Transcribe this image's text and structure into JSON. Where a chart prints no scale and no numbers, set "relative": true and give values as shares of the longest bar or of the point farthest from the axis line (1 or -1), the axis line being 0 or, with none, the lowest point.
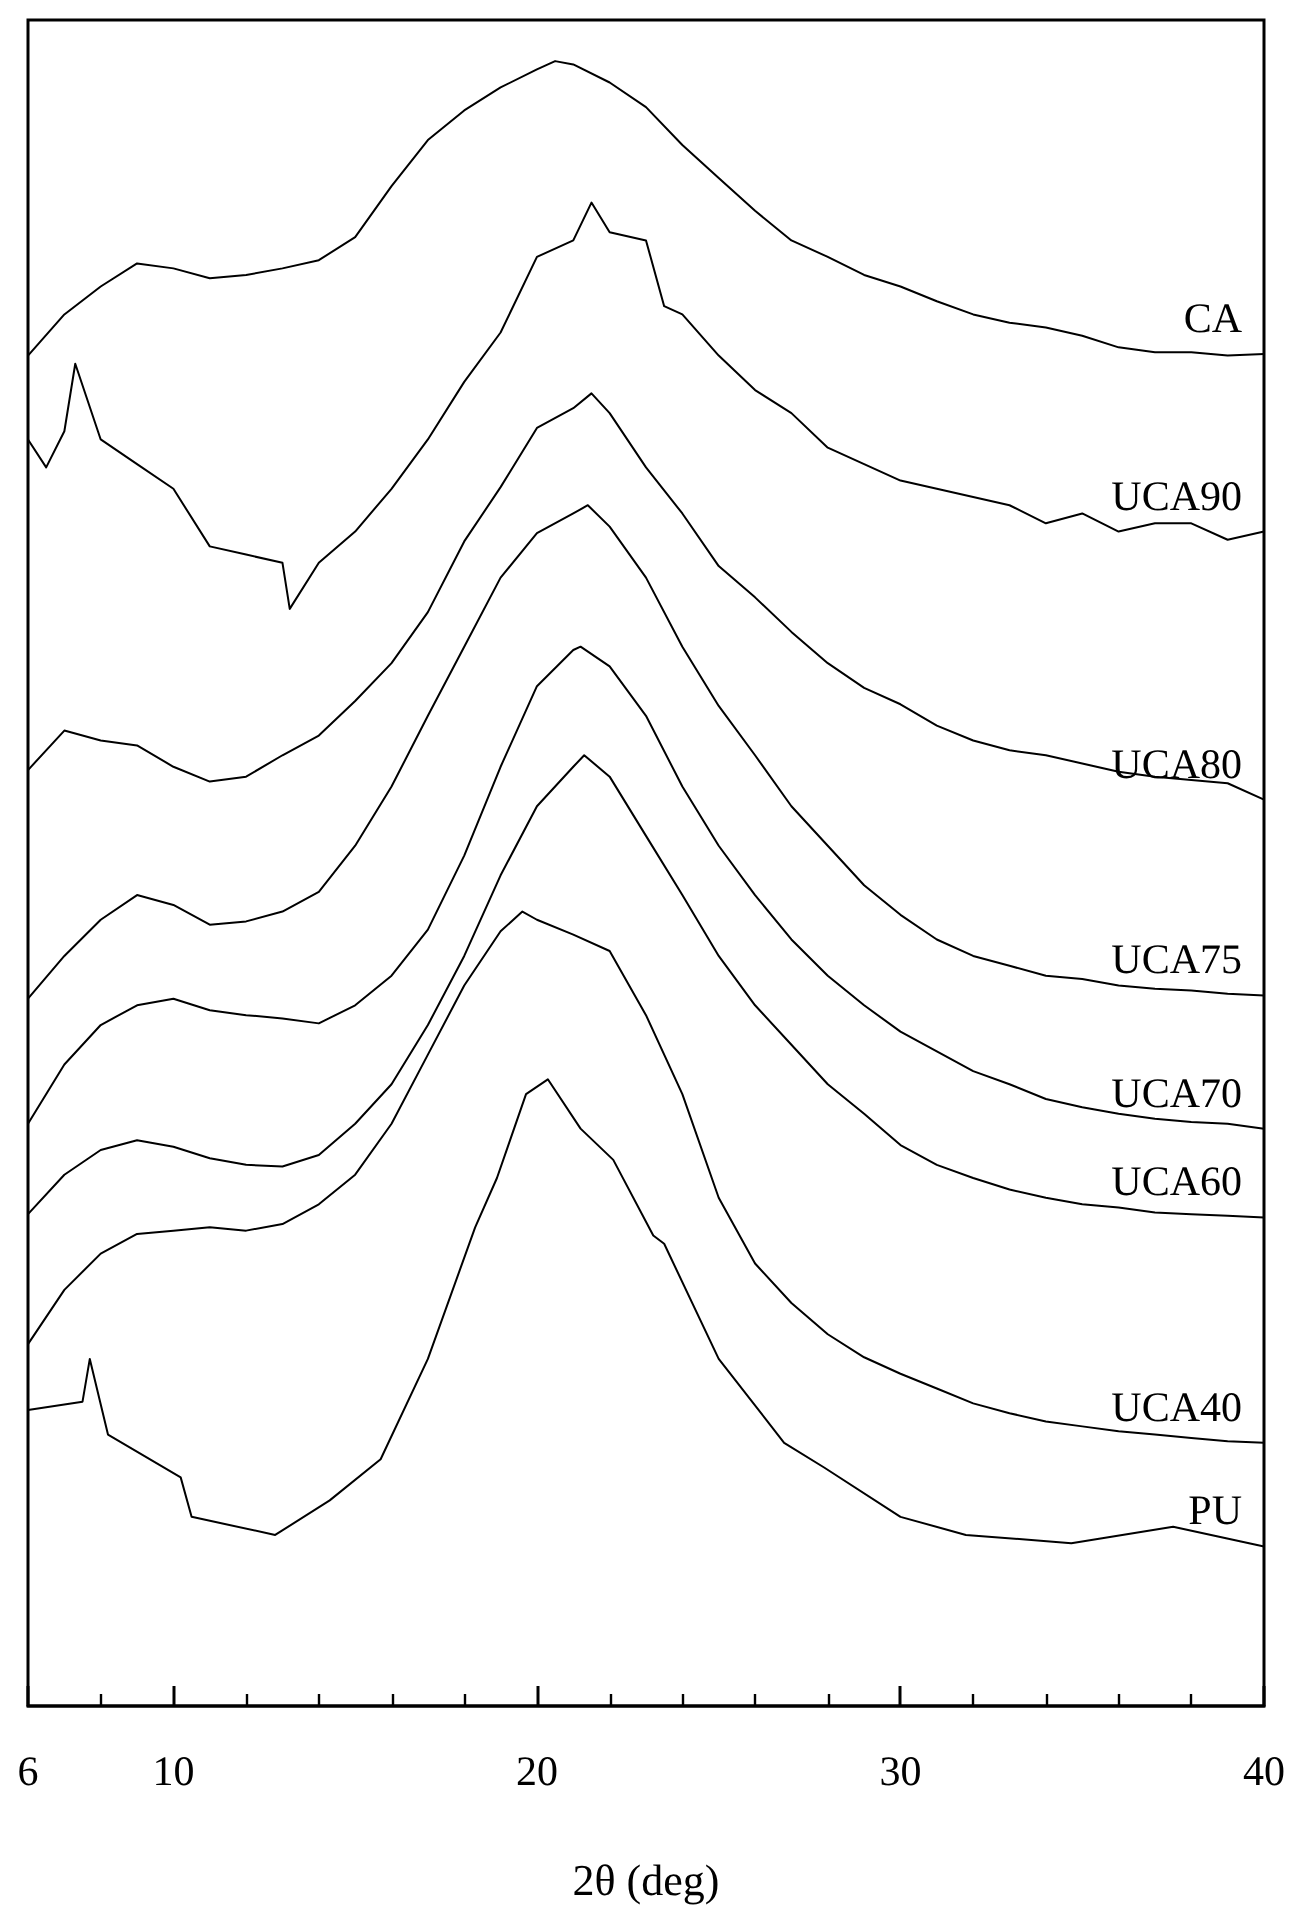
{
  "chart_data": {
    "type": "line",
    "xlabel": "2θ (deg)",
    "relative": true,
    "xlim": [
      6,
      40
    ],
    "xticks": [
      6,
      {
        "value": 8,
        "label": null
      },
      10,
      {
        "value": 12,
        "label": null
      },
      {
        "value": 14,
        "label": null
      },
      {
        "value": 16,
        "label": null
      },
      {
        "value": 18,
        "label": null
      },
      20,
      {
        "value": 22,
        "label": null
      },
      {
        "value": 24,
        "label": null
      },
      {
        "value": 26,
        "label": null
      },
      {
        "value": 28,
        "label": null
      },
      30,
      {
        "value": 32,
        "label": null
      },
      {
        "value": 34,
        "label": null
      },
      {
        "value": 36,
        "label": null
      },
      {
        "value": 38,
        "label": null
      },
      40
    ],
    "marker": "none",
    "line_style": "solid",
    "series": [
      {
        "name": "CA",
        "color": "#000000",
        "x": [
          6,
          7,
          8,
          9,
          10,
          11,
          12,
          13,
          14,
          15,
          16,
          17,
          18,
          19,
          20,
          20.5,
          21,
          22,
          23,
          24,
          25,
          26,
          27,
          28,
          29,
          30,
          31,
          32,
          33,
          34,
          35,
          36,
          37,
          38,
          39,
          40
        ],
        "values": [
          0.821,
          0.846,
          0.863,
          0.877,
          0.874,
          0.868,
          0.87,
          0.874,
          0.879,
          0.893,
          0.924,
          0.952,
          0.97,
          0.984,
          0.995,
          1,
          0.998,
          0.987,
          0.972,
          0.949,
          0.929,
          0.909,
          0.891,
          0.881,
          0.87,
          0.863,
          0.854,
          0.846,
          0.841,
          0.838,
          0.833,
          0.826,
          0.823,
          0.823,
          0.821,
          0.822
        ]
      },
      {
        "name": "UCA90",
        "color": "#000000",
        "x": [
          6,
          6.5,
          7,
          7.3,
          8,
          9,
          10,
          11,
          12,
          13,
          13.2,
          14,
          15,
          16,
          17,
          18,
          19,
          20,
          21,
          21.5,
          22,
          23,
          23.5,
          24,
          25,
          26,
          27,
          28,
          29,
          30,
          31,
          32,
          33,
          34,
          35,
          36,
          37,
          38,
          39,
          40
        ],
        "values": [
          0.77,
          0.753,
          0.775,
          0.816,
          0.77,
          0.755,
          0.74,
          0.705,
          0.7,
          0.695,
          0.667,
          0.695,
          0.714,
          0.74,
          0.77,
          0.805,
          0.835,
          0.881,
          0.891,
          0.914,
          0.896,
          0.891,
          0.851,
          0.846,
          0.821,
          0.8,
          0.786,
          0.765,
          0.755,
          0.745,
          0.74,
          0.735,
          0.73,
          0.719,
          0.725,
          0.714,
          0.719,
          0.719,
          0.709,
          0.714
        ]
      },
      {
        "name": "UCA80",
        "color": "#000000",
        "x": [
          6,
          7,
          8,
          9,
          10,
          11,
          12,
          13,
          14,
          15,
          16,
          17,
          18,
          19,
          20,
          21,
          21.5,
          22,
          23,
          24,
          25,
          26,
          27,
          28,
          29,
          30,
          31,
          32,
          33,
          34,
          35,
          36,
          37,
          38,
          39,
          40
        ],
        "values": [
          0.569,
          0.593,
          0.587,
          0.584,
          0.571,
          0.562,
          0.565,
          0.578,
          0.59,
          0.611,
          0.634,
          0.665,
          0.708,
          0.741,
          0.777,
          0.789,
          0.798,
          0.786,
          0.753,
          0.725,
          0.693,
          0.674,
          0.653,
          0.634,
          0.619,
          0.609,
          0.596,
          0.587,
          0.581,
          0.578,
          0.573,
          0.568,
          0.565,
          0.563,
          0.561,
          0.551
        ]
      },
      {
        "name": "UCA75",
        "color": "#000000",
        "x": [
          6,
          7,
          8,
          9,
          10,
          11,
          12,
          13,
          14,
          15,
          16,
          17,
          18,
          19,
          20,
          21,
          21.4,
          22,
          23,
          24,
          25,
          26,
          27,
          28,
          29,
          30,
          31,
          32,
          33,
          34,
          35,
          36,
          37,
          38,
          39,
          40
        ],
        "values": [
          0.43,
          0.456,
          0.478,
          0.493,
          0.487,
          0.475,
          0.477,
          0.483,
          0.495,
          0.523,
          0.559,
          0.602,
          0.644,
          0.686,
          0.713,
          0.725,
          0.73,
          0.717,
          0.686,
          0.644,
          0.608,
          0.578,
          0.547,
          0.523,
          0.499,
          0.481,
          0.466,
          0.456,
          0.45,
          0.444,
          0.442,
          0.438,
          0.436,
          0.435,
          0.433,
          0.432
        ]
      },
      {
        "name": "UCA70",
        "color": "#000000",
        "x": [
          6,
          7,
          8,
          9,
          10,
          11,
          12,
          13,
          14,
          15,
          16,
          17,
          18,
          19,
          20,
          21,
          21.2,
          22,
          23,
          24,
          25,
          26,
          27,
          28,
          29,
          30,
          31,
          32,
          33,
          34,
          35,
          36,
          37,
          38,
          39,
          40
        ],
        "values": [
          0.354,
          0.39,
          0.414,
          0.426,
          0.43,
          0.423,
          0.42,
          0.418,
          0.415,
          0.426,
          0.444,
          0.472,
          0.517,
          0.571,
          0.62,
          0.642,
          0.644,
          0.632,
          0.602,
          0.559,
          0.523,
          0.493,
          0.466,
          0.444,
          0.426,
          0.41,
          0.398,
          0.386,
          0.378,
          0.369,
          0.364,
          0.36,
          0.357,
          0.355,
          0.354,
          0.351
        ]
      },
      {
        "name": "UCA60",
        "color": "#000000",
        "x": [
          6,
          7,
          8,
          9,
          10,
          11,
          12,
          13,
          14,
          15,
          16,
          17,
          18,
          19,
          20,
          21,
          21.3,
          22,
          23,
          24,
          25,
          26,
          27,
          28,
          29,
          30,
          31,
          32,
          33,
          34,
          35,
          36,
          37,
          38,
          39,
          40
        ],
        "values": [
          0.299,
          0.323,
          0.338,
          0.344,
          0.34,
          0.333,
          0.329,
          0.328,
          0.335,
          0.354,
          0.378,
          0.414,
          0.456,
          0.505,
          0.547,
          0.571,
          0.578,
          0.565,
          0.529,
          0.493,
          0.456,
          0.426,
          0.402,
          0.378,
          0.36,
          0.341,
          0.329,
          0.321,
          0.314,
          0.309,
          0.305,
          0.303,
          0.3,
          0.299,
          0.298,
          0.297
        ]
      },
      {
        "name": "UCA40",
        "color": "#000000",
        "x": [
          6,
          7,
          8,
          9,
          10,
          11,
          12,
          13,
          14,
          15,
          16,
          17,
          18,
          19,
          19.6,
          20,
          21,
          22,
          23,
          24,
          25,
          26,
          27,
          28,
          29,
          30,
          31,
          32,
          33,
          34,
          35,
          36,
          37,
          38,
          39,
          40
        ],
        "values": [
          0.22,
          0.253,
          0.275,
          0.287,
          0.289,
          0.291,
          0.289,
          0.293,
          0.305,
          0.323,
          0.354,
          0.396,
          0.438,
          0.471,
          0.483,
          0.478,
          0.469,
          0.459,
          0.42,
          0.372,
          0.309,
          0.269,
          0.245,
          0.226,
          0.212,
          0.202,
          0.193,
          0.184,
          0.178,
          0.173,
          0.17,
          0.167,
          0.165,
          0.163,
          0.161,
          0.16
        ]
      },
      {
        "name": "PU",
        "color": "#000000",
        "x": [
          6,
          7.5,
          7.7,
          8.2,
          10.2,
          10.5,
          12.8,
          14.3,
          15.7,
          17,
          18.3,
          18.9,
          19.7,
          20.3,
          21.2,
          22.1,
          23.2,
          23.5,
          25,
          26.8,
          27.9,
          30,
          31.8,
          34.7,
          37.5,
          40
        ],
        "values": [
          0.18,
          0.185,
          0.211,
          0.165,
          0.139,
          0.115,
          0.104,
          0.125,
          0.15,
          0.211,
          0.291,
          0.321,
          0.372,
          0.381,
          0.351,
          0.332,
          0.286,
          0.281,
          0.211,
          0.16,
          0.145,
          0.115,
          0.104,
          0.099,
          0.109,
          0.097
        ]
      }
    ]
  }
}
